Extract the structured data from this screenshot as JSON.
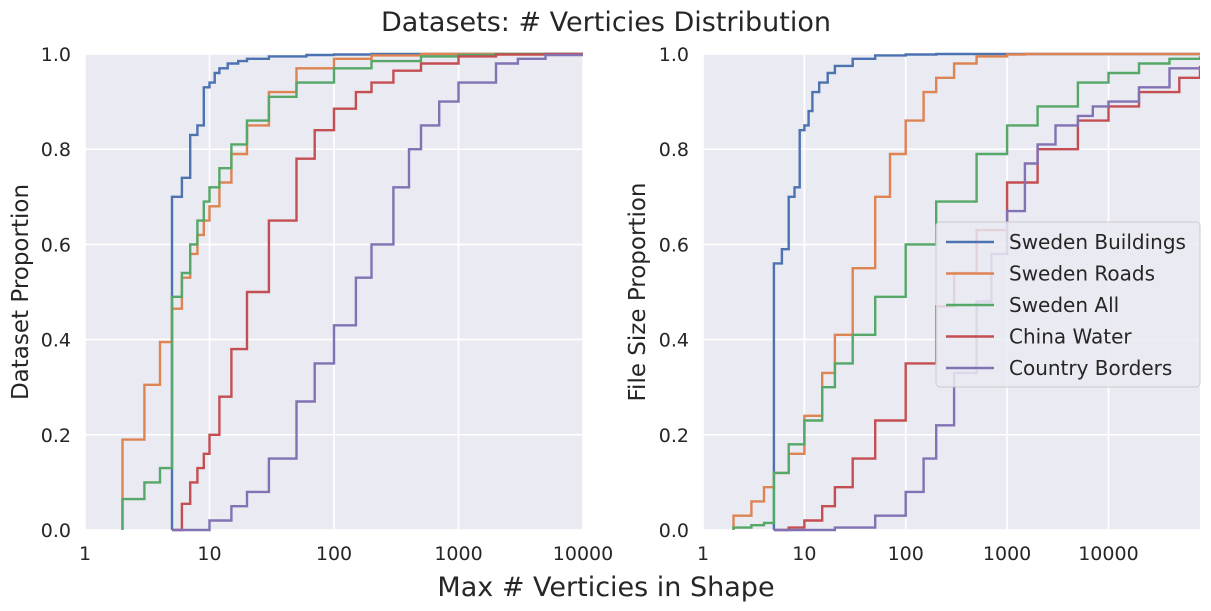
{
  "title": "Datasets: # Verticies Distribution",
  "xlabel": "Max # Verticies in Shape",
  "colors": {
    "background": "#eaeaf2",
    "grid": "#ffffff"
  },
  "series_styles": [
    {
      "name": "Sweden Buildings",
      "color": "#4c72b0"
    },
    {
      "name": "Sweden Roads",
      "color": "#dd8452"
    },
    {
      "name": "Sweden All",
      "color": "#55a868"
    },
    {
      "name": "China Water",
      "color": "#c44e52"
    },
    {
      "name": "Country Borders",
      "color": "#8172b3"
    }
  ],
  "chart_data": [
    {
      "type": "line",
      "step": true,
      "xscale": "log",
      "xlim": [
        1,
        10000
      ],
      "ylim": [
        0,
        1
      ],
      "xticks": [
        "1",
        "10",
        "100",
        "1000",
        "10000"
      ],
      "yticks": [
        "0.0",
        "0.2",
        "0.4",
        "0.6",
        "0.8",
        "1.0"
      ],
      "ylabel": "Dataset Proportion",
      "legend": "none",
      "grid": true,
      "series": [
        {
          "name": "Sweden Buildings",
          "x": [
            5,
            5,
            6,
            7,
            8,
            9,
            10,
            11,
            12,
            14,
            17,
            20,
            30,
            60,
            100,
            200,
            500
          ],
          "y": [
            0,
            0.7,
            0.74,
            0.83,
            0.85,
            0.93,
            0.94,
            0.96,
            0.97,
            0.98,
            0.985,
            0.99,
            0.995,
            0.998,
            0.999,
            1.0,
            1.0
          ]
        },
        {
          "name": "Sweden Roads",
          "x": [
            2,
            2,
            3,
            4,
            5,
            6,
            7,
            8,
            9,
            10,
            12,
            15,
            20,
            30,
            50,
            100,
            200,
            500,
            1000
          ],
          "y": [
            0,
            0.19,
            0.305,
            0.395,
            0.465,
            0.53,
            0.58,
            0.62,
            0.65,
            0.68,
            0.73,
            0.79,
            0.85,
            0.92,
            0.97,
            0.99,
            0.997,
            1.0,
            1.0
          ]
        },
        {
          "name": "Sweden All",
          "x": [
            2,
            2,
            3,
            4,
            5,
            6,
            7,
            8,
            9,
            10,
            12,
            15,
            20,
            30,
            50,
            100,
            200,
            500,
            1000,
            2000
          ],
          "y": [
            0,
            0.065,
            0.1,
            0.13,
            0.49,
            0.54,
            0.6,
            0.65,
            0.69,
            0.72,
            0.76,
            0.81,
            0.86,
            0.91,
            0.94,
            0.97,
            0.985,
            0.995,
            0.998,
            1.0
          ]
        },
        {
          "name": "China Water",
          "x": [
            5,
            6,
            7,
            8,
            9,
            10,
            12,
            15,
            20,
            30,
            50,
            70,
            100,
            150,
            200,
            300,
            500,
            1000,
            2000,
            5000
          ],
          "y": [
            0,
            0.055,
            0.1,
            0.13,
            0.16,
            0.2,
            0.28,
            0.38,
            0.5,
            0.65,
            0.78,
            0.84,
            0.885,
            0.92,
            0.94,
            0.965,
            0.98,
            0.995,
            0.999,
            1.0
          ]
        },
        {
          "name": "Country Borders",
          "x": [
            5,
            10,
            15,
            20,
            30,
            50,
            70,
            100,
            150,
            200,
            300,
            400,
            500,
            700,
            1000,
            2000,
            3000,
            5000,
            10000
          ],
          "y": [
            0,
            0.02,
            0.05,
            0.08,
            0.15,
            0.27,
            0.35,
            0.43,
            0.53,
            0.6,
            0.72,
            0.8,
            0.85,
            0.9,
            0.94,
            0.98,
            0.99,
            0.998,
            1.0
          ]
        }
      ]
    },
    {
      "type": "line",
      "step": true,
      "xscale": "log",
      "xlim": [
        1,
        80000
      ],
      "ylim": [
        0,
        1
      ],
      "xticks": [
        "1",
        "10",
        "100",
        "1000",
        "10000"
      ],
      "yticks": [
        "0.0",
        "0.2",
        "0.4",
        "0.6",
        "0.8",
        "1.0"
      ],
      "ylabel": "File Size Proportion",
      "legend": "center-right",
      "grid": true,
      "series": [
        {
          "name": "Sweden Buildings",
          "x": [
            5,
            5,
            6,
            7,
            8,
            9,
            10,
            11,
            12,
            14,
            17,
            20,
            30,
            50,
            100,
            200,
            500
          ],
          "y": [
            0,
            0.56,
            0.59,
            0.7,
            0.72,
            0.84,
            0.85,
            0.88,
            0.92,
            0.94,
            0.96,
            0.975,
            0.99,
            0.997,
            0.999,
            1.0,
            1.0
          ]
        },
        {
          "name": "Sweden Roads",
          "x": [
            2,
            2,
            3,
            4,
            5,
            7,
            10,
            15,
            20,
            30,
            50,
            70,
            100,
            150,
            200,
            300,
            500,
            1000,
            1500
          ],
          "y": [
            0,
            0.03,
            0.06,
            0.09,
            0.12,
            0.16,
            0.24,
            0.33,
            0.41,
            0.55,
            0.7,
            0.79,
            0.86,
            0.92,
            0.95,
            0.98,
            0.995,
            0.999,
            1.0
          ]
        },
        {
          "name": "Sweden All",
          "x": [
            2,
            2,
            3,
            4,
            5,
            7,
            10,
            15,
            20,
            30,
            50,
            100,
            200,
            500,
            1000,
            2000,
            5000,
            10000,
            20000,
            40000,
            80000
          ],
          "y": [
            0,
            0.005,
            0.01,
            0.015,
            0.12,
            0.18,
            0.23,
            0.3,
            0.35,
            0.41,
            0.49,
            0.6,
            0.69,
            0.79,
            0.85,
            0.89,
            0.94,
            0.96,
            0.98,
            0.99,
            0.995
          ]
        },
        {
          "name": "China Water",
          "x": [
            5,
            7,
            10,
            15,
            20,
            30,
            50,
            100,
            200,
            300,
            500,
            1000,
            2000,
            5000,
            10000,
            20000,
            50000,
            80000
          ],
          "y": [
            0,
            0.005,
            0.02,
            0.05,
            0.09,
            0.15,
            0.23,
            0.35,
            0.47,
            0.54,
            0.63,
            0.73,
            0.8,
            0.86,
            0.89,
            0.92,
            0.95,
            0.975
          ]
        },
        {
          "name": "Country Borders",
          "x": [
            5,
            20,
            50,
            100,
            150,
            200,
            300,
            500,
            700,
            1000,
            1500,
            2000,
            3000,
            5000,
            7000,
            10000,
            20000,
            40000,
            80000
          ],
          "y": [
            0,
            0.005,
            0.03,
            0.08,
            0.15,
            0.22,
            0.33,
            0.48,
            0.58,
            0.67,
            0.77,
            0.81,
            0.85,
            0.87,
            0.89,
            0.9,
            0.93,
            0.97,
            0.97
          ]
        }
      ]
    }
  ]
}
